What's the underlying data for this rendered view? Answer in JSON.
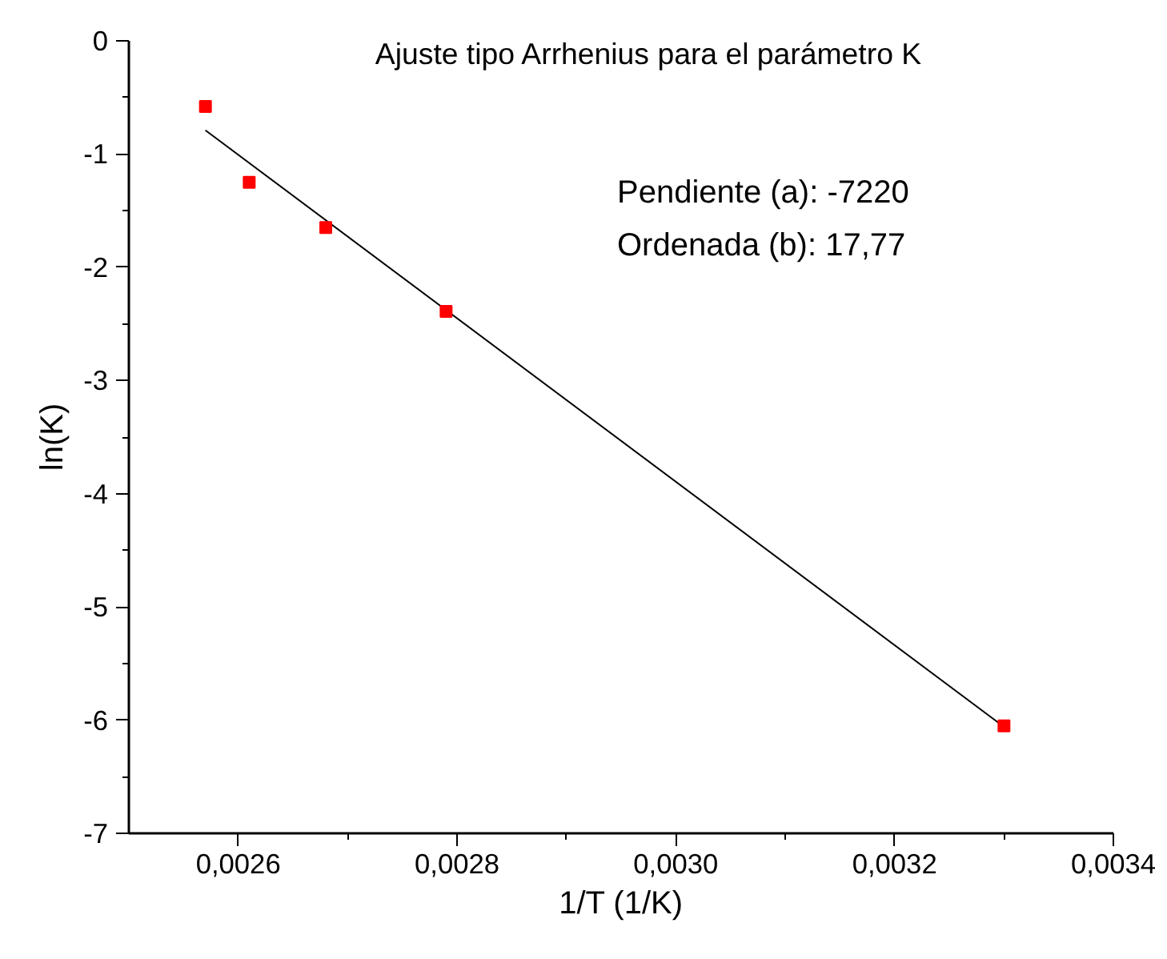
{
  "chart_data": {
    "type": "scatter",
    "title": "Ajuste tipo Arrhenius para el parámetro K",
    "xlabel": "1/T (1/K)",
    "ylabel": "ln(K)",
    "x": [
      0.00257,
      0.00261,
      0.00268,
      0.00279,
      0.0033
    ],
    "series": [
      {
        "color": "#ff0000",
        "marker": "square",
        "values": [
          -0.58,
          -1.25,
          -1.65,
          -2.39,
          -6.05
        ]
      },
      {
        "type": "line",
        "color": "#000000",
        "x": [
          0.00257,
          0.0033
        ],
        "values": [
          -0.79,
          -6.06
        ]
      }
    ],
    "annotations": [
      "Pendiente (a): -7220",
      "Ordenada (b): 17,77"
    ],
    "xlim": [
      0.0025,
      0.0034
    ],
    "xticks": [
      {
        "value": 0.0026,
        "label": "0,0026"
      },
      {
        "value": 0.0028,
        "label": "0,0028"
      },
      {
        "value": 0.003,
        "label": "0,0030"
      },
      {
        "value": 0.0032,
        "label": "0,0032"
      },
      {
        "value": 0.0034,
        "label": "0,0034"
      }
    ],
    "ylim": [
      -7,
      0
    ],
    "yticks": [
      -7,
      -6,
      -5,
      -4,
      -3,
      -2,
      -1,
      0
    ],
    "grid": false
  }
}
